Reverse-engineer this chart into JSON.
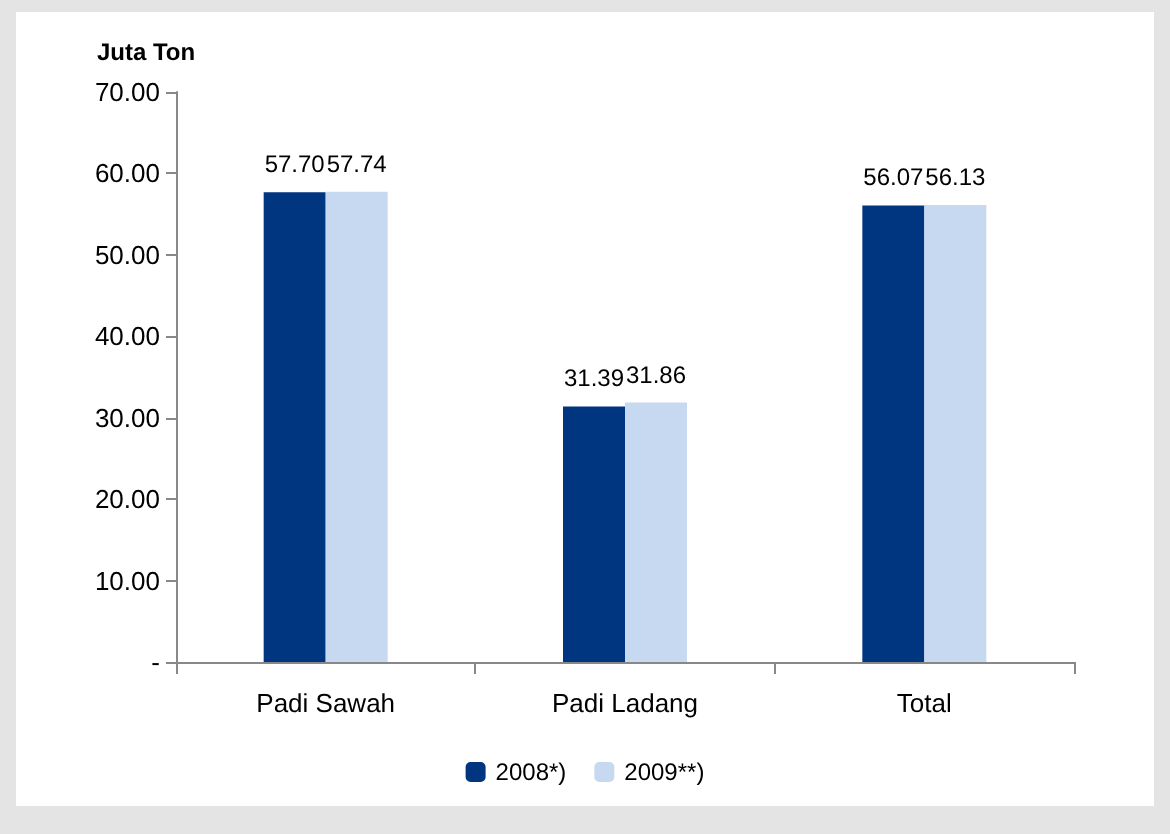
{
  "chart_data": {
    "type": "bar",
    "ylabel": "Juta Ton",
    "categories": [
      "Padi Sawah",
      "Padi Ladang",
      "Total"
    ],
    "series": [
      {
        "name": "2008*)",
        "color": "#003580",
        "values": [
          57.7,
          31.39,
          56.07
        ],
        "value_labels": [
          "57.70",
          "31.39",
          "56.07"
        ]
      },
      {
        "name": "2009**)",
        "color": "#c6d9f1",
        "values": [
          57.74,
          31.86,
          56.13
        ],
        "value_labels": [
          "57.74",
          "31.86",
          "56.13"
        ]
      }
    ],
    "ylim": [
      0,
      70
    ],
    "yticks": [
      {
        "value": 0,
        "label": "-"
      },
      {
        "value": 10,
        "label": "10.00"
      },
      {
        "value": 20,
        "label": "20.00"
      },
      {
        "value": 30,
        "label": "30.00"
      },
      {
        "value": 40,
        "label": "40.00"
      },
      {
        "value": 50,
        "label": "50.00"
      },
      {
        "value": 60,
        "label": "60.00"
      },
      {
        "value": 70,
        "label": "70.00"
      }
    ],
    "grid": false,
    "legend": "bottom"
  }
}
